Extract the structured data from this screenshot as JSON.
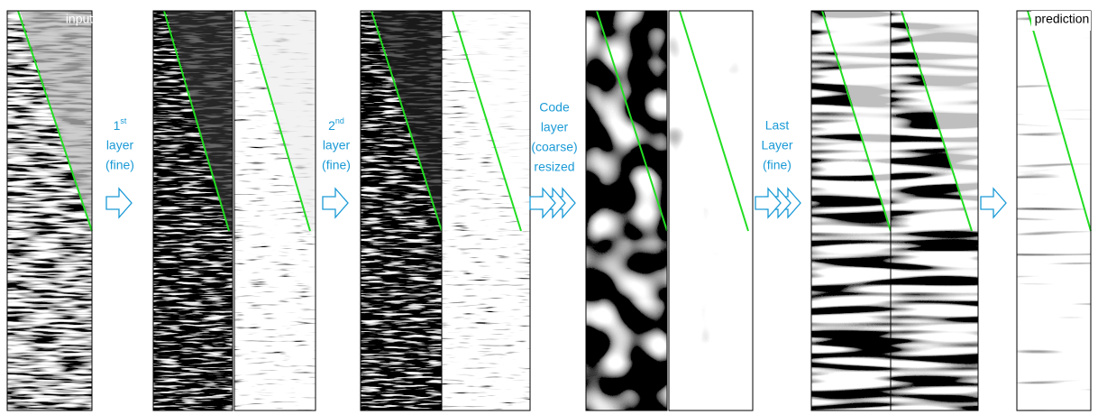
{
  "input_label": "input",
  "prediction_label": "prediction",
  "steps": [
    {
      "number": "1",
      "sup": "st",
      "lines": [
        "layer",
        "(fine)"
      ]
    },
    {
      "number": "2",
      "sup": "nd",
      "lines": [
        "layer",
        "(fine)"
      ]
    },
    {
      "lines": [
        "Code",
        "layer",
        "(coarse)",
        "resized"
      ]
    },
    {
      "lines": [
        "Last",
        "Layer",
        "(fine)"
      ]
    }
  ]
}
